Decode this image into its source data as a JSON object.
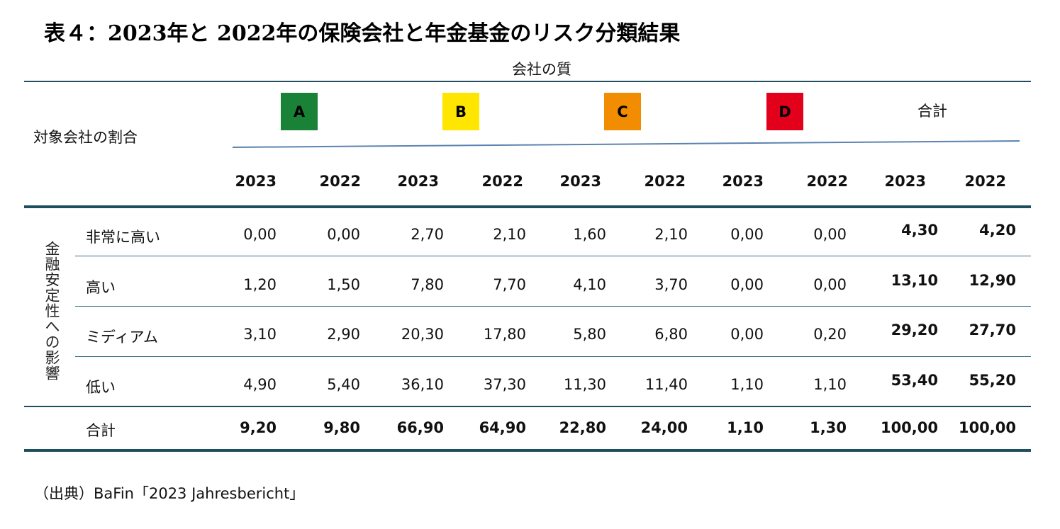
{
  "title": "表４：2023年と 2022年の保険会社と年金基金のリスク分類結果",
  "header": {
    "quality_label": "会社の質",
    "share_label": "対象会社の割合",
    "grades": [
      {
        "label": "A",
        "color": "#1a8236"
      },
      {
        "label": "B",
        "color": "#ffe600"
      },
      {
        "label": "C",
        "color": "#f28c00"
      },
      {
        "label": "D",
        "color": "#e3001b"
      }
    ],
    "total_label": "合計",
    "years": [
      "2023",
      "2022",
      "2023",
      "2022",
      "2023",
      "2022",
      "2023",
      "2022",
      "2023",
      "2022"
    ]
  },
  "impact_label": "金融安定性への影響",
  "rows": [
    {
      "label": "非常に高い",
      "values": [
        "0,00",
        "0,00",
        "2,70",
        "2,10",
        "1,60",
        "2,10",
        "0,00",
        "0,00",
        "4,30",
        "4,20"
      ]
    },
    {
      "label": "高い",
      "values": [
        "1,20",
        "1,50",
        "7,80",
        "7,70",
        "4,10",
        "3,70",
        "0,00",
        "0,00",
        "13,10",
        "12,90"
      ]
    },
    {
      "label": "ミディアム",
      "values": [
        "3,10",
        "2,90",
        "20,30",
        "17,80",
        "5,80",
        "6,80",
        "0,00",
        "0,20",
        "29,20",
        "27,70"
      ]
    },
    {
      "label": "低い",
      "values": [
        "4,90",
        "5,40",
        "36,10",
        "37,30",
        "11,30",
        "11,40",
        "1,10",
        "1,10",
        "53,40",
        "55,20"
      ]
    },
    {
      "label": "合計",
      "values": [
        "9,20",
        "9,80",
        "66,90",
        "64,90",
        "22,80",
        "24,00",
        "1,10",
        "1,30",
        "100,00",
        "100,00"
      ]
    }
  ],
  "source": "（出典）BaFin「2023 Jahresbericht」",
  "colors": {
    "rule_dark": "#1f4e5f",
    "rule_light": "#3d6f8a",
    "underline": "#5b83b0"
  }
}
